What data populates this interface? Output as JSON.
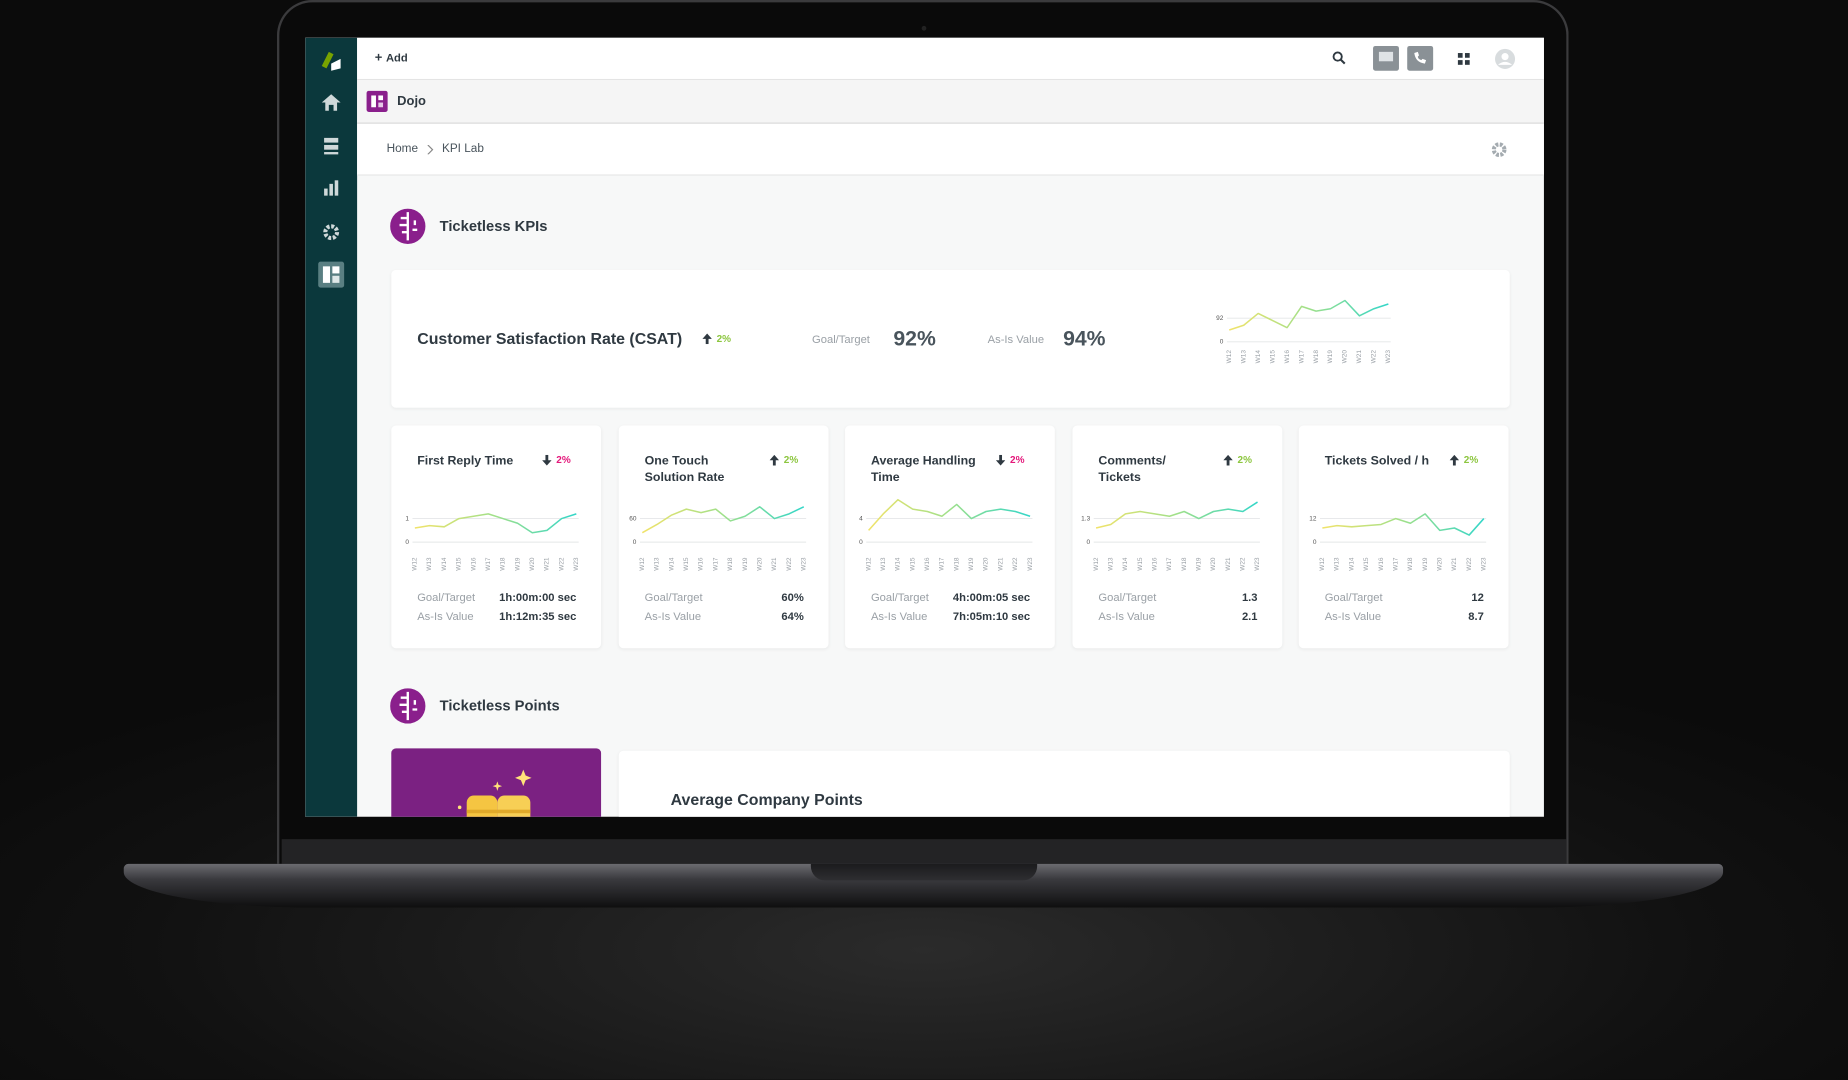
{
  "topbar": {
    "add": "Add"
  },
  "app": {
    "name": "Dojo"
  },
  "breadcrumb": [
    "Home",
    "KPI Lab"
  ],
  "trend_colors": {
    "up": "#8cc63f",
    "down": "#e4187b"
  },
  "sections": [
    {
      "title": "Ticketless KPIs"
    },
    {
      "title": "Ticketless Points"
    }
  ],
  "hero": {
    "title": "Customer Satisfaction Rate (CSAT)",
    "trend": "2%",
    "trend_dir": "up",
    "goal_label": "Goal/Target",
    "goal": "92%",
    "asis_label": "As-Is Value",
    "asis": "94%",
    "spark": {
      "type": "line",
      "x": [
        "W12",
        "W13",
        "W14",
        "W15",
        "W16",
        "W17",
        "W18",
        "W19",
        "W20",
        "W21",
        "W22",
        "W23"
      ],
      "values": [
        46,
        64.4,
        110.4,
        82.8,
        55.2,
        138,
        119.6,
        128.8,
        161,
        101.2,
        128.8,
        147.2
      ],
      "ylim": [
        0,
        170
      ],
      "yticks": [
        0,
        92
      ]
    }
  },
  "cards": [
    {
      "title": "First Reply Time",
      "trend": "2%",
      "trend_dir": "down",
      "goal_label": "Goal/Target",
      "goal": "1h:00m:00 sec",
      "asis_label": "As-Is Value",
      "asis": "1h:12m:35 sec",
      "spark": {
        "type": "line",
        "x": [
          "W12",
          "W13",
          "W14",
          "W15",
          "W16",
          "W17",
          "W18",
          "W19",
          "W20",
          "W21",
          "W22",
          "W23"
        ],
        "values": [
          0.6,
          0.7,
          0.65,
          1.0,
          1.1,
          1.2,
          1.0,
          0.8,
          0.4,
          0.5,
          1.0,
          1.2
        ],
        "ylim": [
          0,
          1.8
        ],
        "yticks": [
          0,
          1
        ]
      }
    },
    {
      "title": "One Touch Solution Rate",
      "trend": "2%",
      "trend_dir": "up",
      "goal_label": "Goal/Target",
      "goal": "60%",
      "asis_label": "As-Is Value",
      "asis": "64%",
      "spark": {
        "type": "line",
        "x": [
          "W12",
          "W13",
          "W14",
          "W15",
          "W16",
          "W17",
          "W18",
          "W19",
          "W20",
          "W21",
          "W22",
          "W23"
        ],
        "values": [
          24,
          45,
          69,
          84,
          75,
          84,
          54,
          66,
          90,
          60,
          72,
          90
        ],
        "ylim": [
          0,
          108
        ],
        "yticks": [
          0,
          60
        ]
      }
    },
    {
      "title": "Average Handling Time",
      "trend": "2%",
      "trend_dir": "down",
      "goal_label": "Goal/Target",
      "goal": "4h:00m:05 sec",
      "asis_label": "As-Is Value",
      "asis": "7h:05m:10 sec",
      "spark": {
        "type": "line",
        "x": [
          "W12",
          "W13",
          "W14",
          "W15",
          "W16",
          "W17",
          "W18",
          "W19",
          "W20",
          "W21",
          "W22",
          "W23"
        ],
        "values": [
          2,
          4.8,
          7.2,
          5.6,
          5.2,
          4.4,
          6.4,
          4,
          5.2,
          5.6,
          5.2,
          4.4
        ],
        "ylim": [
          0,
          7.2
        ],
        "yticks": [
          0,
          4
        ]
      }
    },
    {
      "title": "Comments/ Tickets",
      "trend": "2%",
      "trend_dir": "up",
      "goal_label": "Goal/Target",
      "goal": "1.3",
      "asis_label": "As-Is Value",
      "asis": "2.1",
      "spark": {
        "type": "line",
        "x": [
          "W12",
          "W13",
          "W14",
          "W15",
          "W16",
          "W17",
          "W18",
          "W19",
          "W20",
          "W21",
          "W22",
          "W23"
        ],
        "values": [
          0.78,
          0.975,
          1.56,
          1.69,
          1.56,
          1.43,
          1.69,
          1.3,
          1.69,
          1.82,
          1.69,
          2.21
        ],
        "ylim": [
          0,
          2.34
        ],
        "yticks": [
          0,
          1.3
        ]
      }
    },
    {
      "title": "Tickets Solved / h",
      "trend": "2%",
      "trend_dir": "up",
      "goal_label": "Goal/Target",
      "goal": "12",
      "asis_label": "As-Is Value",
      "asis": "8.7",
      "spark": {
        "type": "line",
        "x": [
          "W12",
          "W13",
          "W14",
          "W15",
          "W16",
          "W17",
          "W18",
          "W19",
          "W20",
          "W21",
          "W22",
          "W23"
        ],
        "values": [
          7.2,
          8.4,
          7.8,
          8.4,
          9,
          12,
          9.6,
          14.4,
          6,
          7.2,
          3.6,
          12
        ],
        "ylim": [
          0,
          21.6
        ],
        "yticks": [
          0,
          12
        ]
      }
    }
  ],
  "points": {
    "title": "Average Company Points"
  }
}
